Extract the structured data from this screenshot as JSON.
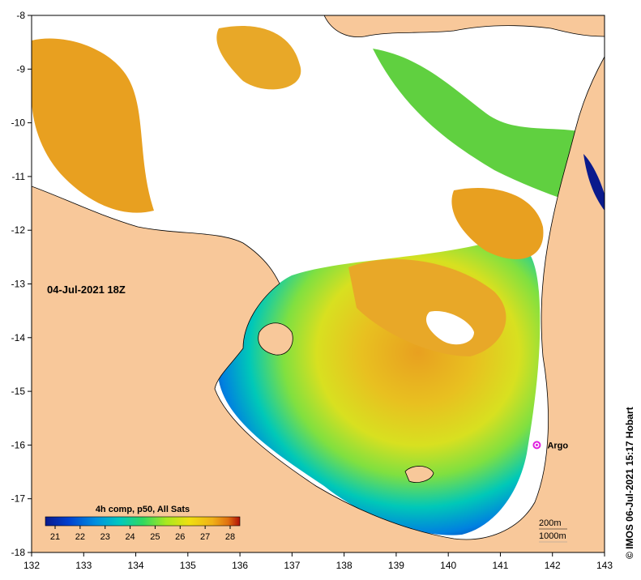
{
  "map": {
    "date_label": "04-Jul-2021 18Z",
    "credit": "© IMOS 06-Jul-2021 15:17 Hobart",
    "argo_label": "Argo",
    "x_ticks": [
      "132",
      "133",
      "134",
      "135",
      "136",
      "137",
      "138",
      "139",
      "140",
      "141",
      "142",
      "143"
    ],
    "y_ticks": [
      "-8",
      "-9",
      "-10",
      "-11",
      "-12",
      "-13",
      "-14",
      "-15",
      "-16",
      "-17",
      "-18"
    ],
    "lon_range": [
      132,
      143
    ],
    "lat_range": [
      -18,
      -8
    ],
    "argo_position": {
      "lon": 141.7,
      "lat": -16.0
    },
    "isobaths": [
      "200m",
      "1000m"
    ]
  },
  "colorbar": {
    "title": "4h comp, p50, All Sats",
    "ticks": [
      "21",
      "22",
      "23",
      "24",
      "25",
      "26",
      "27",
      "28"
    ],
    "colors": [
      "#0a1a8c",
      "#0040d0",
      "#0090e0",
      "#00c8c0",
      "#30d860",
      "#a8e820",
      "#f0e010",
      "#f0b018",
      "#e07010",
      "#b01008"
    ]
  },
  "colors": {
    "land": "#f8c89a",
    "cloud": "#ffffff",
    "warm": "#e8a020",
    "cool": "#0a1a8c",
    "argo": "#e020e0"
  }
}
